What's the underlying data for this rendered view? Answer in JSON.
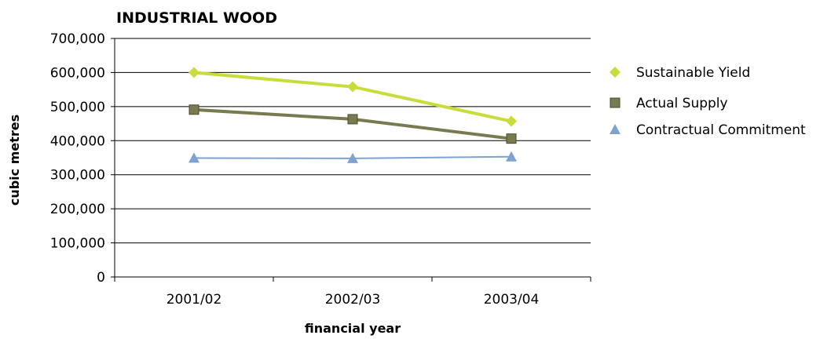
{
  "chart_data": {
    "type": "line",
    "title": "INDUSTRIAL WOOD",
    "xlabel": "financial year",
    "ylabel": "cubic metres",
    "categories": [
      "2001/02",
      "2002/03",
      "2003/04"
    ],
    "ylim": [
      0,
      700000
    ],
    "ytick_values": [
      0,
      100000,
      200000,
      300000,
      400000,
      500000,
      600000,
      700000
    ],
    "ytick_labels": [
      "0",
      "100,000",
      "200,000",
      "300,000",
      "400,000",
      "500,000",
      "600,000",
      "700,000"
    ],
    "grid": "horizontal",
    "legend_position": "right",
    "series": [
      {
        "name": "Sustainable Yield",
        "values": [
          600000,
          558000,
          457000
        ],
        "color": "#c8dc3c",
        "marker": "diamond"
      },
      {
        "name": "Actual Supply",
        "values": [
          491000,
          463000,
          406000
        ],
        "color": "#7a7a50",
        "marker": "square"
      },
      {
        "name": "Contractual Commitment",
        "values": [
          349000,
          348000,
          353000
        ],
        "color": "#7fa3cf",
        "marker": "triangle"
      }
    ]
  }
}
